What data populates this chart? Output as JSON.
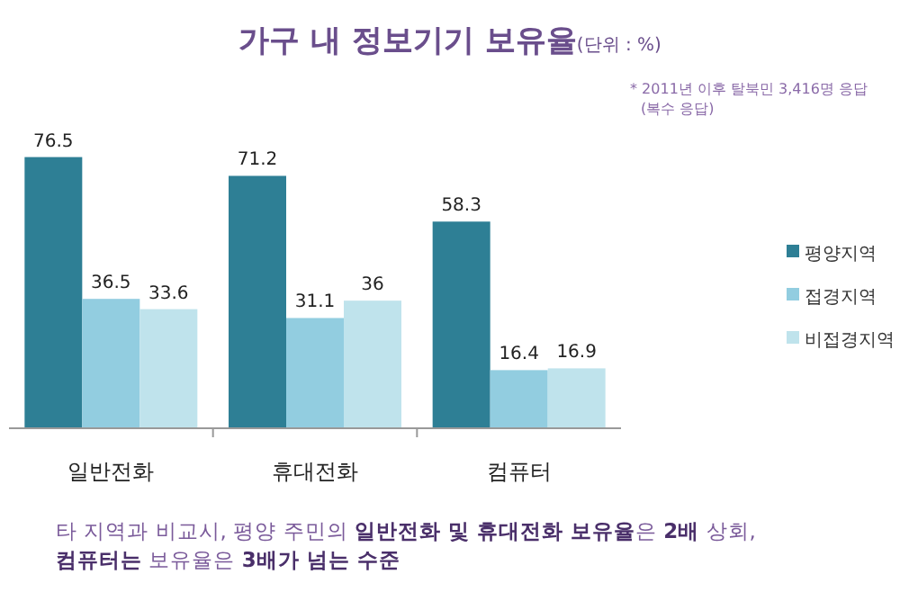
{
  "chart_data": {
    "type": "bar",
    "title": "가구 내 정보기기 보유율",
    "subtitle": "(단위 : %)",
    "categories": [
      "일반전화",
      "휴대전화",
      "컴퓨터"
    ],
    "series": [
      {
        "name": "평양지역",
        "color": "#2e7f95",
        "values": [
          76.5,
          71.2,
          58.3
        ]
      },
      {
        "name": "접경지역",
        "color": "#92cde0",
        "values": [
          36.5,
          31.1,
          16.4
        ]
      },
      {
        "name": "비접경지역",
        "color": "#bfe3ec",
        "values": [
          33.6,
          36,
          16.9
        ]
      }
    ],
    "data_labels": true,
    "legend": "right",
    "annotations": [
      "* 2011년 이후 탈북민 3,416명 응답\n(복수 응답)",
      "타 지역과 비교시, 평양 주민의 **일반전화 및 휴대전화 보유율**은 **2배** 상회,\n**컴퓨터는** 보유율은 **3배가 넘는 수준**"
    ]
  }
}
